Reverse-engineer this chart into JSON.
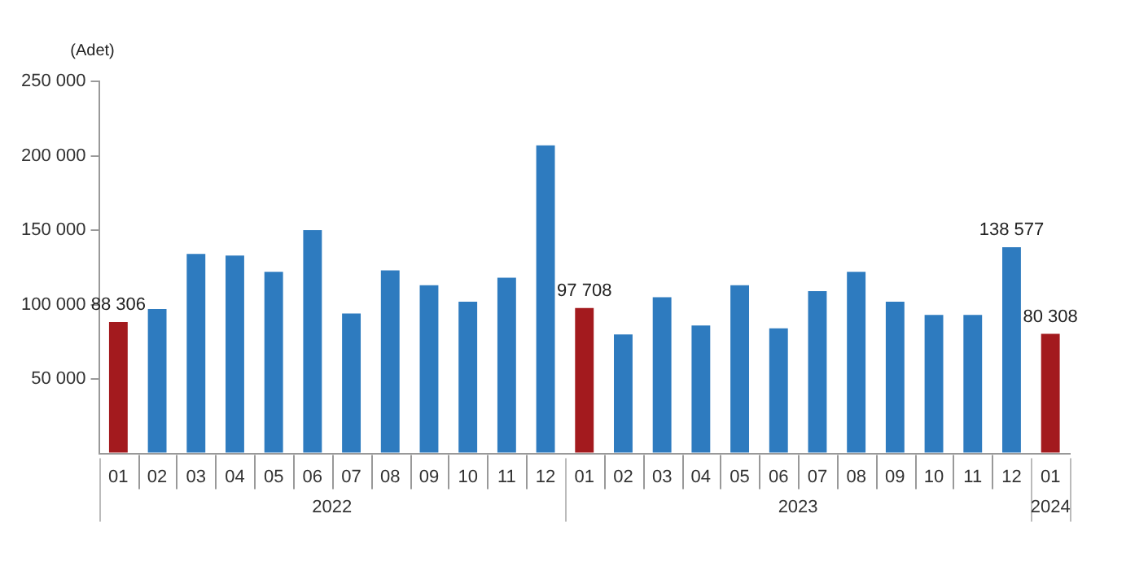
{
  "chart_data": {
    "type": "bar",
    "ylabel": "(Adet)",
    "categories": [
      "01",
      "02",
      "03",
      "04",
      "05",
      "06",
      "07",
      "08",
      "09",
      "10",
      "11",
      "12",
      "01",
      "02",
      "03",
      "04",
      "05",
      "06",
      "07",
      "08",
      "09",
      "10",
      "11",
      "12",
      "01"
    ],
    "values": [
      88306,
      97000,
      134000,
      133000,
      122000,
      150000,
      94000,
      123000,
      113000,
      102000,
      118000,
      207000,
      97708,
      80000,
      105000,
      86000,
      113000,
      84000,
      109000,
      122000,
      102000,
      93000,
      93000,
      138577,
      80308
    ],
    "value_labels": [
      "88 306",
      null,
      null,
      null,
      null,
      null,
      null,
      null,
      null,
      null,
      null,
      null,
      "97 708",
      null,
      null,
      null,
      null,
      null,
      null,
      null,
      null,
      null,
      null,
      "138 577",
      "80 308"
    ],
    "colors": [
      "#a31a1e",
      "#2e7bbf",
      "#2e7bbf",
      "#2e7bbf",
      "#2e7bbf",
      "#2e7bbf",
      "#2e7bbf",
      "#2e7bbf",
      "#2e7bbf",
      "#2e7bbf",
      "#2e7bbf",
      "#2e7bbf",
      "#a31a1e",
      "#2e7bbf",
      "#2e7bbf",
      "#2e7bbf",
      "#2e7bbf",
      "#2e7bbf",
      "#2e7bbf",
      "#2e7bbf",
      "#2e7bbf",
      "#2e7bbf",
      "#2e7bbf",
      "#2e7bbf",
      "#a31a1e"
    ],
    "ylim": [
      0,
      250000
    ],
    "yticks": [
      {
        "value": 0,
        "label": null
      },
      {
        "value": 50000,
        "label": "50 000"
      },
      {
        "value": 100000,
        "label": "100 000"
      },
      {
        "value": 150000,
        "label": "150 000"
      },
      {
        "value": 200000,
        "label": "200 000"
      },
      {
        "value": 250000,
        "label": "250 000"
      }
    ],
    "annotations": [
      "2022",
      "2023",
      "2024"
    ],
    "grid": false,
    "legend": false
  }
}
